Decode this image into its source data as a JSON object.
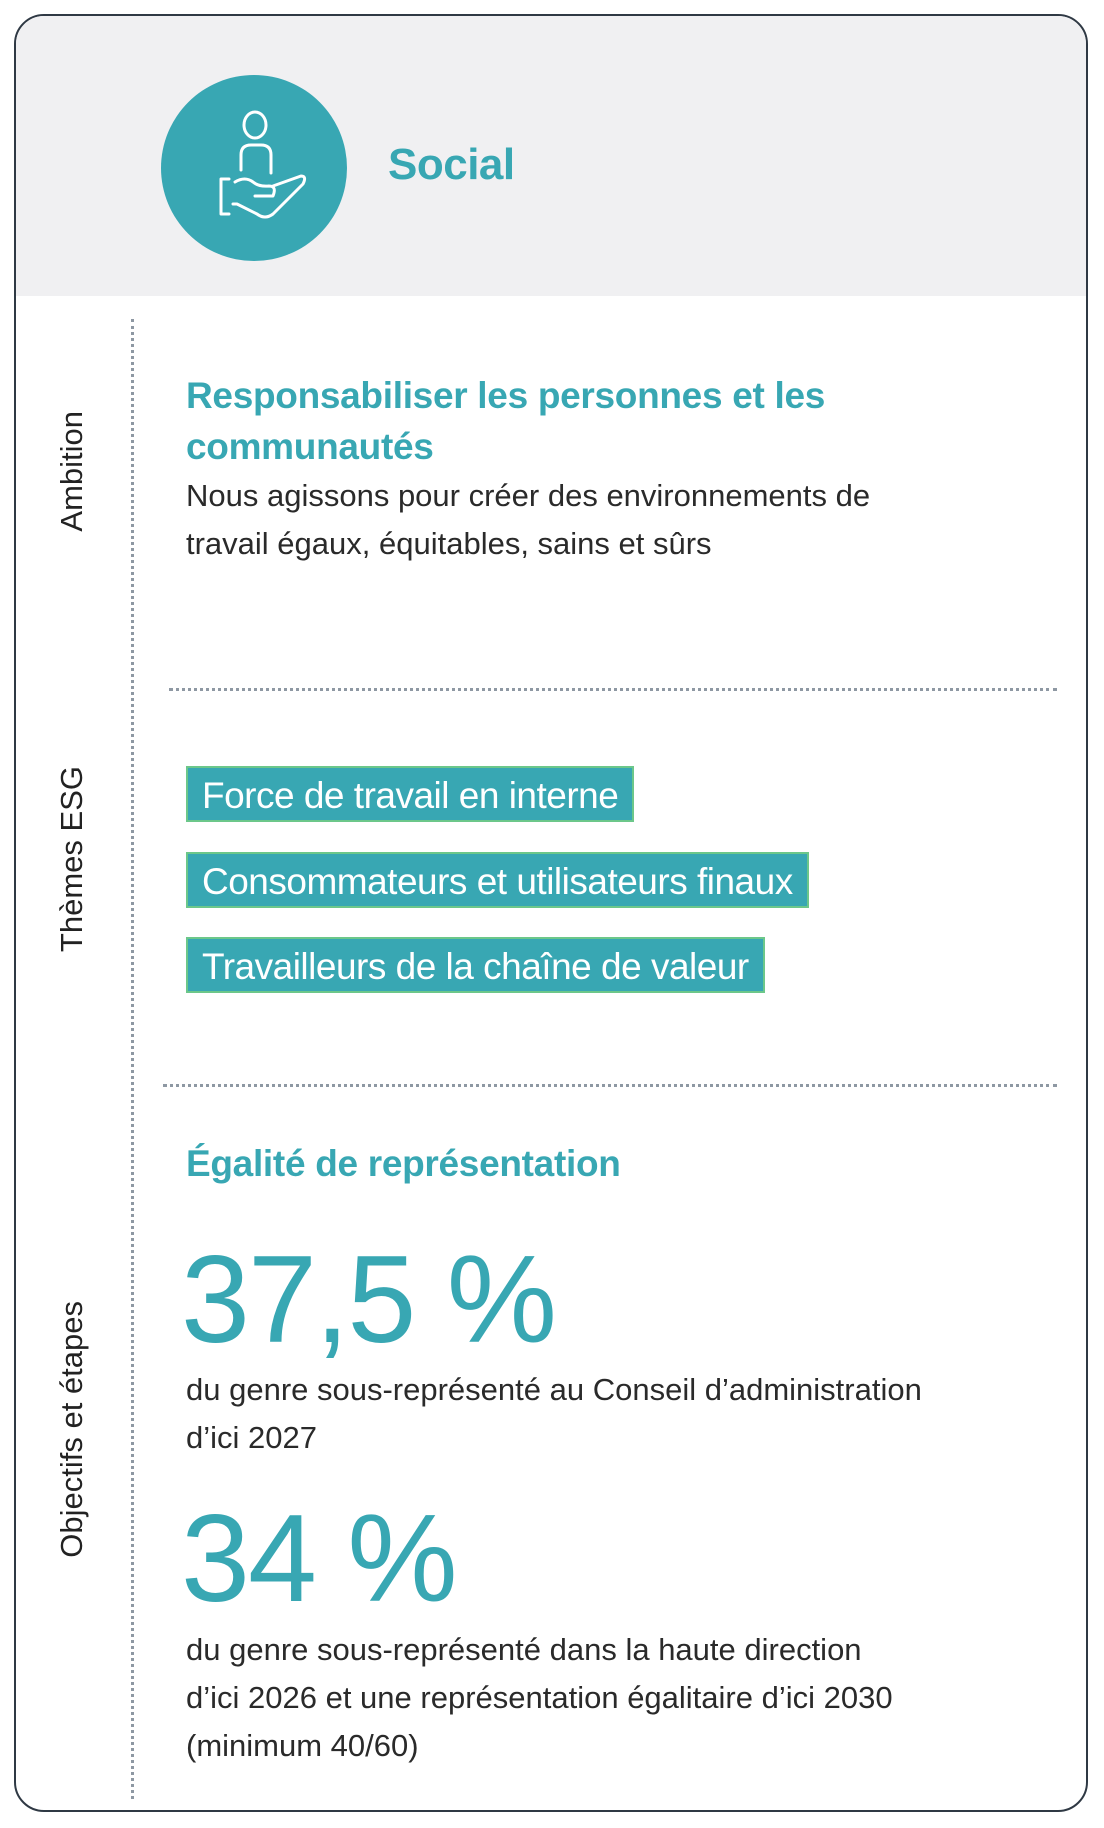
{
  "header": {
    "title": "Social",
    "icon": "hand-holding-person-icon",
    "accent": "#38a7b3"
  },
  "sections": {
    "ambition": {
      "label": "Ambition",
      "heading_line1": "Responsabiliser les personnes et les",
      "heading_line2": "communautés",
      "text_line1": "Nous agissons pour créer des environnements de",
      "text_line2": "travail égaux, équitables, sains et sûrs"
    },
    "themes": {
      "label": "Thèmes ESG",
      "items": [
        "Force de travail en interne",
        "Consommateurs et utilisateurs finaux",
        "Travailleurs de la chaîne de valeur"
      ]
    },
    "objectives": {
      "label": "Objectifs et étapes",
      "heading": "Égalité de représentation",
      "targets": [
        {
          "value": "37,5 %",
          "lines": [
            "du genre sous-représenté au Conseil d’administration",
            "d’ici 2027"
          ]
        },
        {
          "value": "34 %",
          "lines": [
            "du genre sous-représenté dans la haute direction",
            "d’ici 2026 et une représentation égalitaire d’ici 2030",
            "(minimum 40/60)"
          ]
        }
      ]
    }
  }
}
